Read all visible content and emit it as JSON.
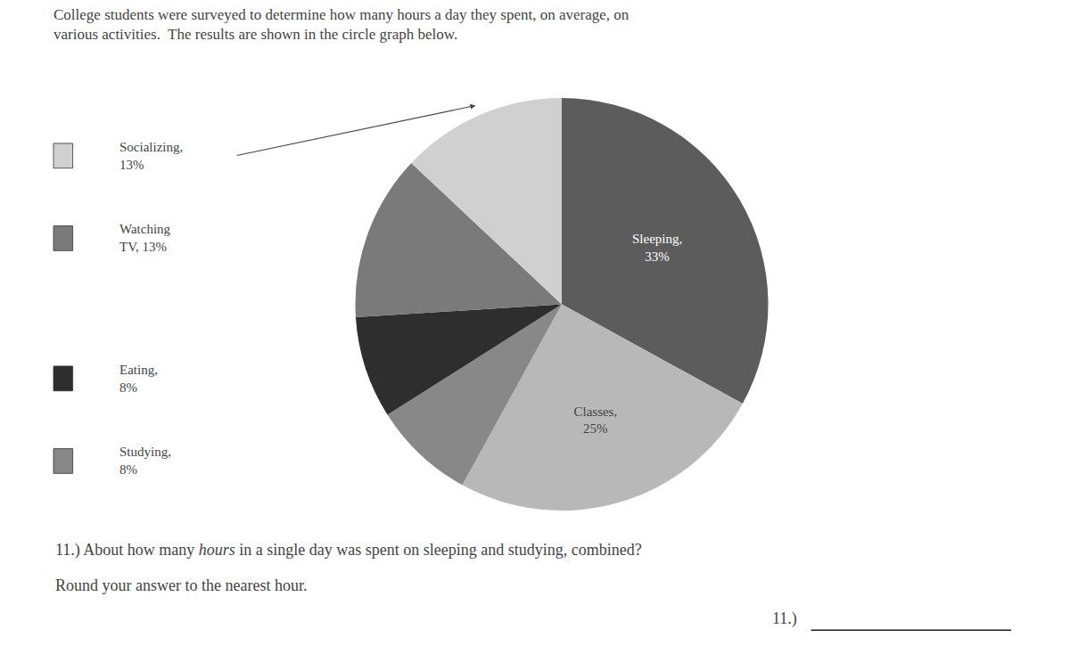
{
  "chart_data": {
    "type": "pie",
    "title": "College students were surveyed to determine how many hours a day they spent, on average, on",
    "subtitle": "various activities.  The results are shown in the circle graph below.",
    "categories": [
      "Sleeping,\n33%",
      "Classes,\n25%",
      "Studying,\n8%",
      "Eating,\n8%",
      "Watching\nTV, 13%",
      "Socializing,\n13%"
    ],
    "values": [
      33,
      25,
      8,
      8,
      13,
      13
    ],
    "colors": [
      "#5c5c5c",
      "#b8b8b8",
      "#888888",
      "#2e2e2e",
      "#7a7a7a",
      "#d0d0d0"
    ],
    "value_labels": [
      "Sleeping,\n33%",
      "Classes,\n25%",
      null,
      null,
      null,
      null
    ],
    "legend": "left",
    "annotations": [
      [
        {
          "text": "11.) About how many "
        },
        {
          "text": "hours",
          "style": "italic"
        },
        {
          "text": " in a single day was spent on sleeping and studying, combined?"
        }
      ],
      [
        {
          "text": "Round your answer to the nearest hour."
        }
      ],
      [
        {
          "text": "11.)"
        }
      ]
    ]
  }
}
